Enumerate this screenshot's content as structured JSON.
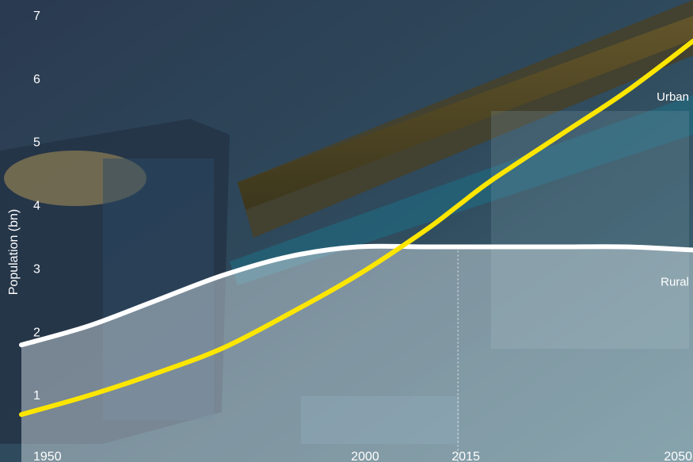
{
  "chart_data": {
    "type": "line",
    "ylabel": "Population (bn)",
    "xlabel": "",
    "title": "",
    "xlim": [
      1950,
      2050
    ],
    "ylim": [
      0,
      7
    ],
    "x_ticks": [
      1950,
      2000,
      2015,
      2050
    ],
    "y_ticks": [
      1,
      2,
      3,
      4,
      5,
      6,
      7
    ],
    "reference_line_x": 2015,
    "series": [
      {
        "name": "Urban",
        "color": "#ffe600",
        "x": [
          1950,
          1960,
          1970,
          1980,
          1990,
          2000,
          2010,
          2015,
          2020,
          2030,
          2040,
          2050
        ],
        "y": [
          0.7,
          1.0,
          1.35,
          1.75,
          2.3,
          2.9,
          3.6,
          4.0,
          4.4,
          5.1,
          5.8,
          6.6
        ]
      },
      {
        "name": "Rural",
        "color": "#ffffff",
        "x": [
          1950,
          1960,
          1970,
          1980,
          1990,
          2000,
          2010,
          2015,
          2020,
          2030,
          2040,
          2050
        ],
        "y": [
          1.8,
          2.1,
          2.5,
          2.9,
          3.2,
          3.35,
          3.35,
          3.35,
          3.35,
          3.35,
          3.35,
          3.3
        ]
      }
    ],
    "grid": false,
    "legend": "none"
  }
}
